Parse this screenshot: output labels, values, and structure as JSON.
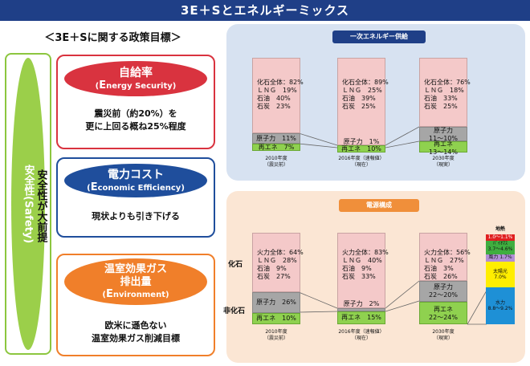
{
  "title": "3E＋Sとエネルギーミックス",
  "policy_heading": "＜3E＋Sに関する政策目標＞",
  "safety": {
    "label": "安全性(Safety)",
    "premise": "安全性が大前提"
  },
  "goals": [
    {
      "title": "自給率",
      "subtitle_prefix": "E",
      "subtitle_rest": "nergy Security",
      "desc": [
        "震災前（約20%）を",
        "更に上回る概ね25%程度"
      ],
      "color": "#d9333f"
    },
    {
      "title": "電力コスト",
      "subtitle_prefix": "E",
      "subtitle_rest": "conomic Efficiency",
      "desc": [
        "現状よりも引き下げる"
      ],
      "color": "#1f4e9c"
    },
    {
      "title": "温室効果ガス",
      "title2": "排出量",
      "subtitle_prefix": "E",
      "subtitle_rest": "nvironment",
      "desc": [
        "欧米に遜色ない",
        "温室効果ガス削減目標"
      ],
      "color": "#f07f2a"
    }
  ],
  "primary": {
    "title": "一次エネルギー供給",
    "bars": [
      {
        "fossil": "化石全体：82%\nＬＮＧ　19%\n石油　40%\n石炭　23%",
        "nuclear": "原子力　11%",
        "renew": "再エネ　7%",
        "year": "2010年度",
        "note": "（震災前）"
      },
      {
        "fossil": "化石全体：89%\nＬＮＧ　25%\n石油　39%\n石炭　25%",
        "nuclear": "原子力　1%",
        "renew": "再エネ　10%",
        "year": "2016年度（速報値）",
        "note": "（現在）"
      },
      {
        "fossil": "化石全体：76%\nＬＮＧ　18%\n石油　33%\n石炭　25%",
        "nuclear": "原子力\n11～10%",
        "renew": "再エネ\n13～14%",
        "year": "2030年度",
        "note": "（現実）"
      }
    ]
  },
  "power": {
    "title": "電源構成",
    "axis_fossil": "化石",
    "axis_nonfossil": "非化石",
    "bars": [
      {
        "fossil": "火力全体：64%\nＬＮＧ　28%\n石油　9%\n石炭　27%",
        "nuclear": "原子力　26%",
        "renew": "再エネ　10%",
        "year": "2010年度",
        "note": "（震災前）"
      },
      {
        "fossil": "火力全体：83%\nＬＮＧ　40%\n石油　9%\n石炭　33%",
        "nuclear": "原子力　2%",
        "renew": "再エネ　15%",
        "year": "2016年度（速報値）",
        "note": "（現在）"
      },
      {
        "fossil": "火力全体：56%\nＬＮＧ　27%\n石油　3%\n石炭　26%",
        "nuclear": "原子力\n22～20%",
        "renew": "再エネ\n22～24%",
        "year": "2030年度",
        "note": "（現実）"
      }
    ],
    "breakdown": {
      "geo_label": "地熱",
      "geo_value": "1.0～1.1%",
      "biomass": "ﾊﾞｲｵﾏｽ\n3.7～4.6%",
      "wind": "風力 1.7%",
      "solar": "太陽光\n7.0%",
      "hydro": "水力\n8.8～9.2%",
      "colors": {
        "geo": "#e02020",
        "biomass": "#3fae3f",
        "wind": "#b28fd6",
        "solar": "#ffee00",
        "hydro": "#1e90d6"
      }
    }
  }
}
